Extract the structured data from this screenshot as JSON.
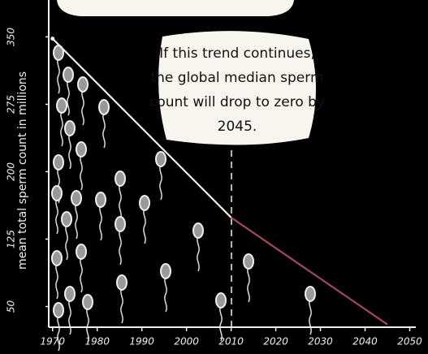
{
  "chart_data": {
    "type": "line",
    "y_label": "mean total sperm count in millions",
    "annotation_lines": [
      "If this trend continues,",
      "the global median sperm",
      "count will drop to zero by",
      "2045."
    ],
    "xlim": [
      1969.5,
      2051
    ],
    "xticks": [
      1970,
      1980,
      1990,
      2000,
      2010,
      2020,
      2030,
      2040,
      2050
    ],
    "ylim": [
      27,
      391
    ],
    "yticks": [
      50,
      125,
      200,
      275,
      350
    ],
    "series": [
      {
        "color": "#f2efe4",
        "x": [
          1970,
          2010
        ],
        "values": [
          348,
          149
        ]
      },
      {
        "color": "#a3475e",
        "x": [
          2010,
          2045
        ],
        "values": [
          149,
          30
        ]
      }
    ]
  }
}
